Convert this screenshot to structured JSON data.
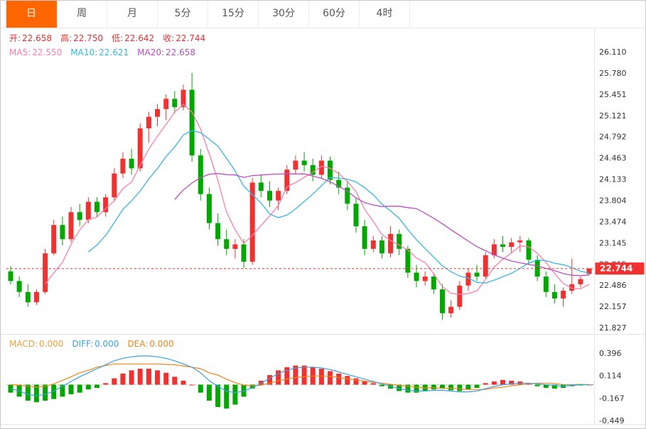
{
  "tabs": [
    {
      "label": "日",
      "active": true
    },
    {
      "label": "周",
      "active": false
    },
    {
      "label": "月",
      "active": false
    },
    {
      "label": "5分",
      "active": false
    },
    {
      "label": "15分",
      "active": false
    },
    {
      "label": "30分",
      "active": false
    },
    {
      "label": "60分",
      "active": false
    },
    {
      "label": "4时",
      "active": false
    }
  ],
  "legend": {
    "ohlc": [
      {
        "label": "开:",
        "value": "22.658"
      },
      {
        "label": "高:",
        "value": "22.750"
      },
      {
        "label": "低:",
        "value": "22.642"
      },
      {
        "label": "收:",
        "value": "22.744"
      }
    ],
    "ma": [
      {
        "label": "MA5:",
        "value": "22.550"
      },
      {
        "label": "MA10:",
        "value": "22.621"
      },
      {
        "label": "MA20:",
        "value": "22.658"
      }
    ]
  },
  "macd_legend": [
    {
      "label": "MACD:",
      "value": "0.000"
    },
    {
      "label": "DIFF:",
      "value": "0.000"
    },
    {
      "label": "DEA:",
      "value": "0.000"
    }
  ],
  "price_tag": "22.744",
  "colors": {
    "up": "#f23030",
    "down": "#00a800",
    "accent_tab": "#ff6600",
    "price_line": "#f23030",
    "ma5": "#ff7ca8",
    "ma10": "#35b8e0",
    "ma20": "#b94fc1",
    "diff": "#3aa0e0",
    "dea": "#f08518",
    "macd_label": "#e8a23c",
    "axis_text": "#333333",
    "separator": "#e3e3e3"
  },
  "chart_data": {
    "type": "candlestick",
    "title": "",
    "current": {
      "open": 22.658,
      "high": 22.75,
      "low": 22.642,
      "close": 22.744
    },
    "ma_values": {
      "MA5": 22.55,
      "MA10": 22.621,
      "MA20": 22.658
    },
    "price_line": 22.744,
    "ylim": [
      21.66,
      26.45
    ],
    "y_ticks": [
      26.11,
      25.78,
      25.451,
      25.121,
      24.792,
      24.463,
      24.133,
      23.804,
      23.474,
      23.145,
      22.815,
      22.486,
      22.157,
      21.827
    ],
    "candles": [
      [
        22.7,
        22.78,
        22.5,
        22.55
      ],
      [
        22.55,
        22.62,
        22.3,
        22.38
      ],
      [
        22.38,
        22.5,
        22.15,
        22.22
      ],
      [
        22.22,
        22.42,
        22.18,
        22.38
      ],
      [
        22.38,
        23.05,
        22.35,
        22.98
      ],
      [
        22.98,
        23.5,
        22.95,
        23.42
      ],
      [
        23.42,
        23.55,
        23.1,
        23.2
      ],
      [
        23.2,
        23.7,
        23.15,
        23.62
      ],
      [
        23.62,
        23.75,
        23.4,
        23.5
      ],
      [
        23.5,
        23.85,
        23.45,
        23.78
      ],
      [
        23.78,
        23.85,
        23.55,
        23.62
      ],
      [
        23.62,
        23.9,
        23.55,
        23.85
      ],
      [
        23.85,
        24.3,
        23.8,
        24.22
      ],
      [
        24.22,
        24.55,
        24.15,
        24.45
      ],
      [
        24.45,
        24.6,
        24.2,
        24.3
      ],
      [
        24.3,
        25.0,
        24.25,
        24.92
      ],
      [
        24.92,
        25.18,
        24.7,
        25.1
      ],
      [
        25.1,
        25.3,
        24.95,
        25.22
      ],
      [
        25.22,
        25.45,
        25.05,
        25.38
      ],
      [
        25.38,
        25.5,
        25.15,
        25.25
      ],
      [
        25.25,
        25.6,
        25.2,
        25.52
      ],
      [
        25.52,
        25.78,
        24.4,
        24.5
      ],
      [
        24.5,
        24.6,
        23.8,
        23.9
      ],
      [
        23.9,
        24.0,
        23.35,
        23.45
      ],
      [
        23.45,
        23.6,
        23.1,
        23.2
      ],
      [
        23.2,
        23.35,
        22.95,
        23.05
      ],
      [
        23.05,
        23.2,
        22.9,
        23.12
      ],
      [
        23.12,
        23.2,
        22.75,
        22.85
      ],
      [
        22.85,
        24.15,
        22.8,
        24.08
      ],
      [
        24.08,
        24.2,
        23.85,
        23.95
      ],
      [
        23.95,
        24.1,
        23.7,
        23.8
      ],
      [
        23.8,
        24.0,
        23.65,
        23.95
      ],
      [
        23.95,
        24.35,
        23.9,
        24.28
      ],
      [
        24.28,
        24.5,
        24.2,
        24.42
      ],
      [
        24.42,
        24.55,
        24.25,
        24.35
      ],
      [
        24.35,
        24.45,
        24.1,
        24.2
      ],
      [
        24.2,
        24.5,
        24.15,
        24.42
      ],
      [
        24.42,
        24.48,
        24.05,
        24.12
      ],
      [
        24.12,
        24.25,
        23.9,
        24.0
      ],
      [
        24.0,
        24.1,
        23.65,
        23.75
      ],
      [
        23.75,
        23.85,
        23.3,
        23.4
      ],
      [
        23.4,
        23.5,
        22.95,
        23.05
      ],
      [
        23.05,
        23.25,
        23.0,
        23.18
      ],
      [
        23.18,
        23.25,
        22.9,
        22.98
      ],
      [
        22.98,
        23.4,
        22.92,
        23.28
      ],
      [
        23.28,
        23.35,
        22.95,
        23.05
      ],
      [
        23.05,
        23.1,
        22.6,
        22.68
      ],
      [
        22.68,
        22.8,
        22.45,
        22.55
      ],
      [
        22.55,
        22.7,
        22.48,
        22.62
      ],
      [
        22.62,
        22.68,
        22.35,
        22.42
      ],
      [
        22.42,
        22.5,
        21.95,
        22.05
      ],
      [
        22.05,
        22.25,
        21.98,
        22.15
      ],
      [
        22.15,
        22.55,
        22.1,
        22.48
      ],
      [
        22.48,
        22.75,
        22.4,
        22.68
      ],
      [
        22.68,
        22.8,
        22.55,
        22.62
      ],
      [
        22.62,
        23.0,
        22.58,
        22.95
      ],
      [
        22.95,
        23.2,
        22.9,
        23.12
      ],
      [
        23.12,
        23.25,
        23.0,
        23.08
      ],
      [
        23.08,
        23.22,
        22.98,
        23.15
      ],
      [
        23.15,
        23.25,
        23.0,
        23.18
      ],
      [
        23.18,
        23.22,
        22.8,
        22.88
      ],
      [
        22.88,
        22.95,
        22.55,
        22.62
      ],
      [
        22.62,
        22.7,
        22.3,
        22.38
      ],
      [
        22.38,
        22.5,
        22.2,
        22.28
      ],
      [
        22.28,
        22.45,
        22.15,
        22.4
      ],
      [
        22.4,
        22.9,
        22.35,
        22.5
      ],
      [
        22.5,
        22.62,
        22.45,
        22.58
      ],
      [
        22.658,
        22.75,
        22.642,
        22.744
      ]
    ],
    "ma_periods": [
      5,
      10,
      20
    ],
    "macd": {
      "current": {
        "macd": 0.0,
        "diff": 0.0,
        "dea": 0.0
      },
      "y_ticks": [
        0.396,
        0.114,
        -0.167,
        -0.449
      ],
      "hist": [
        -0.1,
        -0.15,
        -0.2,
        -0.22,
        -0.2,
        -0.18,
        -0.15,
        -0.12,
        -0.1,
        -0.06,
        -0.04,
        0.02,
        0.08,
        0.14,
        0.18,
        0.2,
        0.2,
        0.18,
        0.15,
        0.1,
        0.05,
        0.0,
        -0.1,
        -0.2,
        -0.28,
        -0.3,
        -0.25,
        -0.15,
        -0.05,
        0.05,
        0.12,
        0.18,
        0.22,
        0.24,
        0.24,
        0.22,
        0.2,
        0.17,
        0.14,
        0.11,
        0.08,
        0.05,
        0.02,
        -0.02,
        -0.05,
        -0.08,
        -0.1,
        -0.1,
        -0.08,
        -0.06,
        -0.05,
        -0.07,
        -0.08,
        -0.06,
        -0.04,
        0.02,
        0.04,
        0.06,
        0.05,
        0.04,
        0.02,
        -0.02,
        -0.04,
        -0.05,
        -0.04,
        -0.02,
        -0.01,
        0.0
      ],
      "diff": [
        -0.05,
        -0.08,
        -0.12,
        -0.14,
        -0.12,
        -0.08,
        -0.02,
        0.04,
        0.1,
        0.15,
        0.2,
        0.25,
        0.3,
        0.33,
        0.35,
        0.36,
        0.36,
        0.35,
        0.33,
        0.3,
        0.26,
        0.22,
        0.15,
        0.05,
        -0.02,
        -0.08,
        -0.1,
        -0.08,
        -0.04,
        0.02,
        0.08,
        0.14,
        0.18,
        0.21,
        0.22,
        0.22,
        0.21,
        0.19,
        0.16,
        0.13,
        0.1,
        0.07,
        0.04,
        0.01,
        -0.02,
        -0.05,
        -0.07,
        -0.08,
        -0.08,
        -0.07,
        -0.07,
        -0.08,
        -0.09,
        -0.09,
        -0.08,
        -0.05,
        -0.02,
        0.0,
        0.01,
        0.02,
        0.02,
        0.01,
        0.0,
        -0.01,
        -0.02,
        -0.01,
        0.0,
        0.0
      ]
    }
  }
}
